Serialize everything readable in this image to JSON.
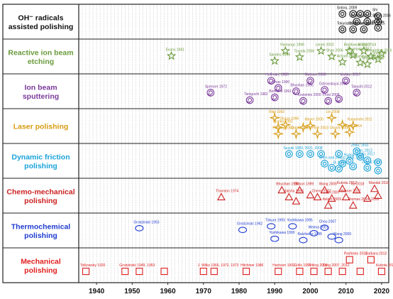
{
  "chart_data": {
    "type": "scatter",
    "title": "",
    "xlabel": "",
    "ylabel": "",
    "xlim": [
      1935,
      2022
    ],
    "x_ticks": [
      1940,
      1950,
      1960,
      1970,
      1980,
      1990,
      2000,
      2010,
      2020
    ],
    "grid": "vertical dotted lines every year",
    "rows": [
      {
        "id": "oh",
        "name": [
          "OH⁻ radicals",
          "assisted polishing"
        ],
        "color": "#111111",
        "marker": "circle"
      },
      {
        "id": "rib",
        "name": [
          "Reactive ion beam",
          "etching"
        ],
        "color": "#6a9a3c",
        "marker": "star5"
      },
      {
        "id": "ibs",
        "name": [
          "Ion beam",
          "sputtering"
        ],
        "color": "#7a3a9a",
        "marker": "spiral"
      },
      {
        "id": "laser",
        "name": [
          "Laser polishing"
        ],
        "color": "#d79b10",
        "marker": "star4"
      },
      {
        "id": "dfp",
        "name": [
          "Dynamic friction",
          "polishing"
        ],
        "color": "#1aa3d9",
        "marker": "circle"
      },
      {
        "id": "cmp",
        "name": [
          "Chemo-mechanical",
          "polishing"
        ],
        "color": "#cc2222",
        "marker": "triangle"
      },
      {
        "id": "tcp",
        "name": [
          "Thermochemical",
          "polishing"
        ],
        "color": "#1f3bd0",
        "marker": "ellipse"
      },
      {
        "id": "mech",
        "name": [
          "Mechanical",
          "polishing"
        ],
        "color": "#e02020",
        "marker": "square"
      }
    ],
    "series": [
      {
        "row": "oh",
        "points": [
          {
            "x": 2009,
            "dy": 0.22,
            "label": "Sotoru, 2009"
          },
          {
            "x": 2012,
            "dy": 0.22
          },
          {
            "x": 2014,
            "dy": 0.22
          },
          {
            "x": 2016,
            "dy": 0.22
          },
          {
            "x": 2013,
            "dy": 0.5,
            "label": "Kubota 2012, 2014, 2016"
          },
          {
            "x": 2016,
            "dy": 0.5
          },
          {
            "x": 2019,
            "dy": 0.5,
            "label": "Shi"
          },
          {
            "x": 2012,
            "dy": 0.78,
            "label": "Watanabe, 2013"
          },
          {
            "x": 2009,
            "dy": 0.78,
            "label": "Tokura, 2009"
          },
          {
            "x": 2015,
            "dy": 0.78,
            "label": "Yamamoto, 2015"
          },
          {
            "x": 2019,
            "dy": 0.3,
            "label": "Shi"
          },
          {
            "x": 2019,
            "dy": 0.72,
            "label": "Kubota"
          }
        ]
      },
      {
        "row": "rib",
        "points": [
          {
            "x": 1961,
            "dy": 0.48,
            "label": "Evans 1961"
          },
          {
            "x": 1990,
            "dy": 0.66,
            "label": "Sandeu 1989"
          },
          {
            "x": 1993,
            "dy": 0.3,
            "label": "Yiamungc 1996"
          },
          {
            "x": 1997,
            "dy": 0.52,
            "label": "Toyoda 2006"
          },
          {
            "x": 2003,
            "dy": 0.3,
            "label": "Lenek 2002"
          },
          {
            "x": 2006,
            "dy": 0.5,
            "label": "Shao 2006"
          },
          {
            "x": 2009,
            "dy": 0.7,
            "label": "Achard 2009"
          },
          {
            "x": 2012,
            "dy": 0.45,
            "label": "Neumann 2012"
          },
          {
            "x": 2011,
            "dy": 0.3,
            "label": "Bejdlowski 2010"
          },
          {
            "x": 2015,
            "dy": 0.3,
            "label": "Wang 2014"
          },
          {
            "x": 2017,
            "dy": 0.5,
            "label": "Alexanders 2016"
          },
          {
            "x": 2014,
            "dy": 0.72,
            "label": "Nishihara 2014"
          },
          {
            "x": 2016,
            "dy": 0.78,
            "label": "Sinibaldi 2016"
          },
          {
            "x": 2019,
            "dy": 0.6,
            "label": "Shi 2019"
          },
          {
            "x": 2020,
            "dy": 0.4
          }
        ]
      },
      {
        "row": "ibs",
        "points": [
          {
            "x": 1972,
            "dy": 0.55,
            "label": "Spencer 1972"
          },
          {
            "x": 1983,
            "dy": 0.82,
            "label": "Taniguchi 1982"
          },
          {
            "x": 1989,
            "dy": 0.12,
            "label": "Hoffman, 1989"
          },
          {
            "x": 1991,
            "dy": 0.38,
            "label": "Zhao 1990"
          },
          {
            "x": 1990,
            "dy": 0.72,
            "label": "Bertrand 1991"
          },
          {
            "x": 1996,
            "dy": 0.5,
            "label": "Bhushan 1996"
          },
          {
            "x": 1998,
            "dy": 0.85,
            "label": "Kostenko 2000"
          },
          {
            "x": 2000,
            "dy": 0.12,
            "label": "Mattson 2000"
          },
          {
            "x": 2004,
            "dy": 0.45,
            "label": "Ostrovskaya 2000"
          },
          {
            "x": 2005,
            "dy": 0.85,
            "label": "Frost 2008"
          },
          {
            "x": 2010,
            "dy": 0.12,
            "label": "Ieshko, 2017"
          },
          {
            "x": 2013,
            "dy": 0.55,
            "label": "Takashi 2012"
          },
          {
            "x": 2008,
            "dy": 0.78
          }
        ]
      },
      {
        "row": "laser",
        "points": [
          {
            "x": 1990,
            "dy": 0.2,
            "label": "Bilgi 1992"
          },
          {
            "x": 1993,
            "dy": 0.45,
            "label": "Okazo 1996"
          },
          {
            "x": 1991,
            "dy": 0.55,
            "label": "Tsuoka 1992"
          },
          {
            "x": 1991,
            "dy": 0.78,
            "label": "Pimeng 2000"
          },
          {
            "x": 1996,
            "dy": 0.78,
            "label": "Catalis 2001"
          },
          {
            "x": 1998,
            "dy": 0.55
          },
          {
            "x": 2000,
            "dy": 0.48,
            "label": "Mayer 2000"
          },
          {
            "x": 2002,
            "dy": 0.78,
            "label": "Pitali 2003"
          },
          {
            "x": 2006,
            "dy": 0.2,
            "label": "Lin 2008"
          },
          {
            "x": 2007,
            "dy": 0.78,
            "label": "Okuchi 2008"
          },
          {
            "x": 2009,
            "dy": 0.45
          },
          {
            "x": 2012,
            "dy": 0.48,
            "label": "Kanamoto 2011"
          },
          {
            "x": 2011,
            "dy": 0.72,
            "label": "Wang 2014"
          }
        ]
      },
      {
        "row": "dfp",
        "points": [
          {
            "x": 1994,
            "dy": 0.25,
            "label": "Suzuki 1989, 2001, 2008"
          },
          {
            "x": 1997,
            "dy": 0.25
          },
          {
            "x": 2000,
            "dy": 0.25
          },
          {
            "x": 2003,
            "dy": 0.25
          },
          {
            "x": 2008,
            "dy": 0.25
          },
          {
            "x": 2013,
            "dy": 0.15,
            "label": "Zhou, 2011"
          },
          {
            "x": 2011,
            "dy": 0.5,
            "label": "Huang 2010"
          },
          {
            "x": 2012,
            "dy": 0.7
          },
          {
            "x": 2014,
            "dy": 0.35,
            "label": "Yuan, 2012"
          },
          {
            "x": 2016,
            "dy": 0.48,
            "label": "Xu 2017"
          },
          {
            "x": 2019,
            "dy": 0.55
          },
          {
            "x": 2019,
            "dy": 0.85
          },
          {
            "x": 2016,
            "dy": 0.75,
            "label": "Zhang 2016"
          },
          {
            "x": 2004,
            "dy": 0.6,
            "label": "Chen and Zhang 2005, 2006"
          },
          {
            "x": 2006,
            "dy": 0.75
          },
          {
            "x": 2008,
            "dy": 0.78,
            "label": "Bi 2009"
          },
          {
            "x": 2009,
            "dy": 0.6
          }
        ]
      },
      {
        "row": "cmp",
        "points": [
          {
            "x": 1975,
            "dy": 0.55,
            "label": "Thornton 1974"
          },
          {
            "x": 1992,
            "dy": 0.3,
            "label": "Bhushan 1993"
          },
          {
            "x": 1994,
            "dy": 0.55,
            "label": "Malsha 1996"
          },
          {
            "x": 1996,
            "dy": 0.7
          },
          {
            "x": 1997,
            "dy": 0.3,
            "label": "Ollison 1999"
          },
          {
            "x": 2000,
            "dy": 0.48
          },
          {
            "x": 2002,
            "dy": 0.55,
            "label": "Cheng 2002"
          },
          {
            "x": 2004,
            "dy": 0.3,
            "label": "Wang 2006"
          },
          {
            "x": 2006,
            "dy": 0.6,
            "label": "Fei 2007"
          },
          {
            "x": 2005,
            "dy": 0.85,
            "label": "Aslam 2009"
          },
          {
            "x": 2009,
            "dy": 0.25,
            "label": "Kubota 2012"
          },
          {
            "x": 2010,
            "dy": 0.55,
            "label": "Werner 2017"
          },
          {
            "x": 2012,
            "dy": 0.85,
            "label": "Thomas 2014, 2016"
          },
          {
            "x": 2013,
            "dy": 0.3,
            "label": "Xu 2018"
          },
          {
            "x": 2016,
            "dy": 0.6
          },
          {
            "x": 2018,
            "dy": 0.25,
            "label": "Mandal 2016"
          },
          {
            "x": 2019,
            "dy": 0.5
          }
        ]
      },
      {
        "row": "tcp",
        "points": [
          {
            "x": 1952,
            "dy": 0.42,
            "label": "Grodzinski 1953"
          },
          {
            "x": 1981,
            "dy": 0.48,
            "label": "Grodzinski 1962"
          },
          {
            "x": 1989,
            "dy": 0.35,
            "label": "Tokura 1993"
          },
          {
            "x": 1990,
            "dy": 0.8,
            "label": "Yoshikawa 1990"
          },
          {
            "x": 1995,
            "dy": 0.35,
            "label": "Yoshikawa 1995"
          },
          {
            "x": 1998,
            "dy": 0.85,
            "label": "Ralzheiko 1995"
          },
          {
            "x": 2001,
            "dy": 0.6,
            "label": "Weima 2001"
          },
          {
            "x": 2004,
            "dy": 0.4,
            "label": "Chou 2007"
          },
          {
            "x": 2006,
            "dy": 0.72
          },
          {
            "x": 2008,
            "dy": 0.85,
            "label": "Wang 2009"
          }
        ]
      },
      {
        "row": "mech",
        "points": [
          {
            "x": 1937,
            "dy": 0.72,
            "label": "Tolkowsky 1920"
          },
          {
            "x": 1948,
            "dy": 0.72,
            "label": "Grodzinski 1949, 1953"
          },
          {
            "x": 1952,
            "dy": 0.72
          },
          {
            "x": 1959,
            "dy": 0.72
          },
          {
            "x": 1970,
            "dy": 0.72,
            "label": "J. Wilks 1966, 1972, 1973"
          },
          {
            "x": 1973,
            "dy": 0.72
          },
          {
            "x": 1982,
            "dy": 0.72,
            "label": "Hitchiner 1986"
          },
          {
            "x": 1991,
            "dy": 0.72,
            "label": "Harrison 1992"
          },
          {
            "x": 1997,
            "dy": 0.72,
            "label": "Grillo 1997"
          },
          {
            "x": 2001,
            "dy": 0.72,
            "label": "Tetling 2000"
          },
          {
            "x": 2005,
            "dy": 0.72,
            "label": "Zong 2007, 2012"
          },
          {
            "x": 2009,
            "dy": 0.72
          },
          {
            "x": 2011,
            "dy": 0.3,
            "label": "Pasfesko 2011"
          },
          {
            "x": 2014,
            "dy": 0.72
          },
          {
            "x": 2017,
            "dy": 0.3,
            "label": "Barbara 2013"
          },
          {
            "x": 2020,
            "dy": 0.72,
            "label": "Kubota 2020"
          }
        ]
      }
    ]
  }
}
